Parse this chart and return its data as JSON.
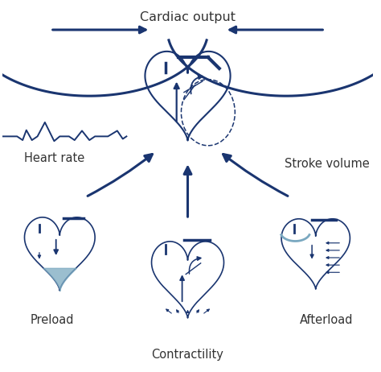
{
  "labels": {
    "cardiac_output": "Cardiac output",
    "heart_rate": "Heart rate",
    "stroke_volume": "Stroke volume",
    "preload": "Preload",
    "contractility": "Contractility",
    "afterload": "Afterload"
  },
  "arrow_color": "#1a3570",
  "heart_color": "#1a3570",
  "ecg_color": "#1a3570",
  "fill_color": "#7aa8c0",
  "background_color": "#ffffff",
  "label_font_size": 11
}
